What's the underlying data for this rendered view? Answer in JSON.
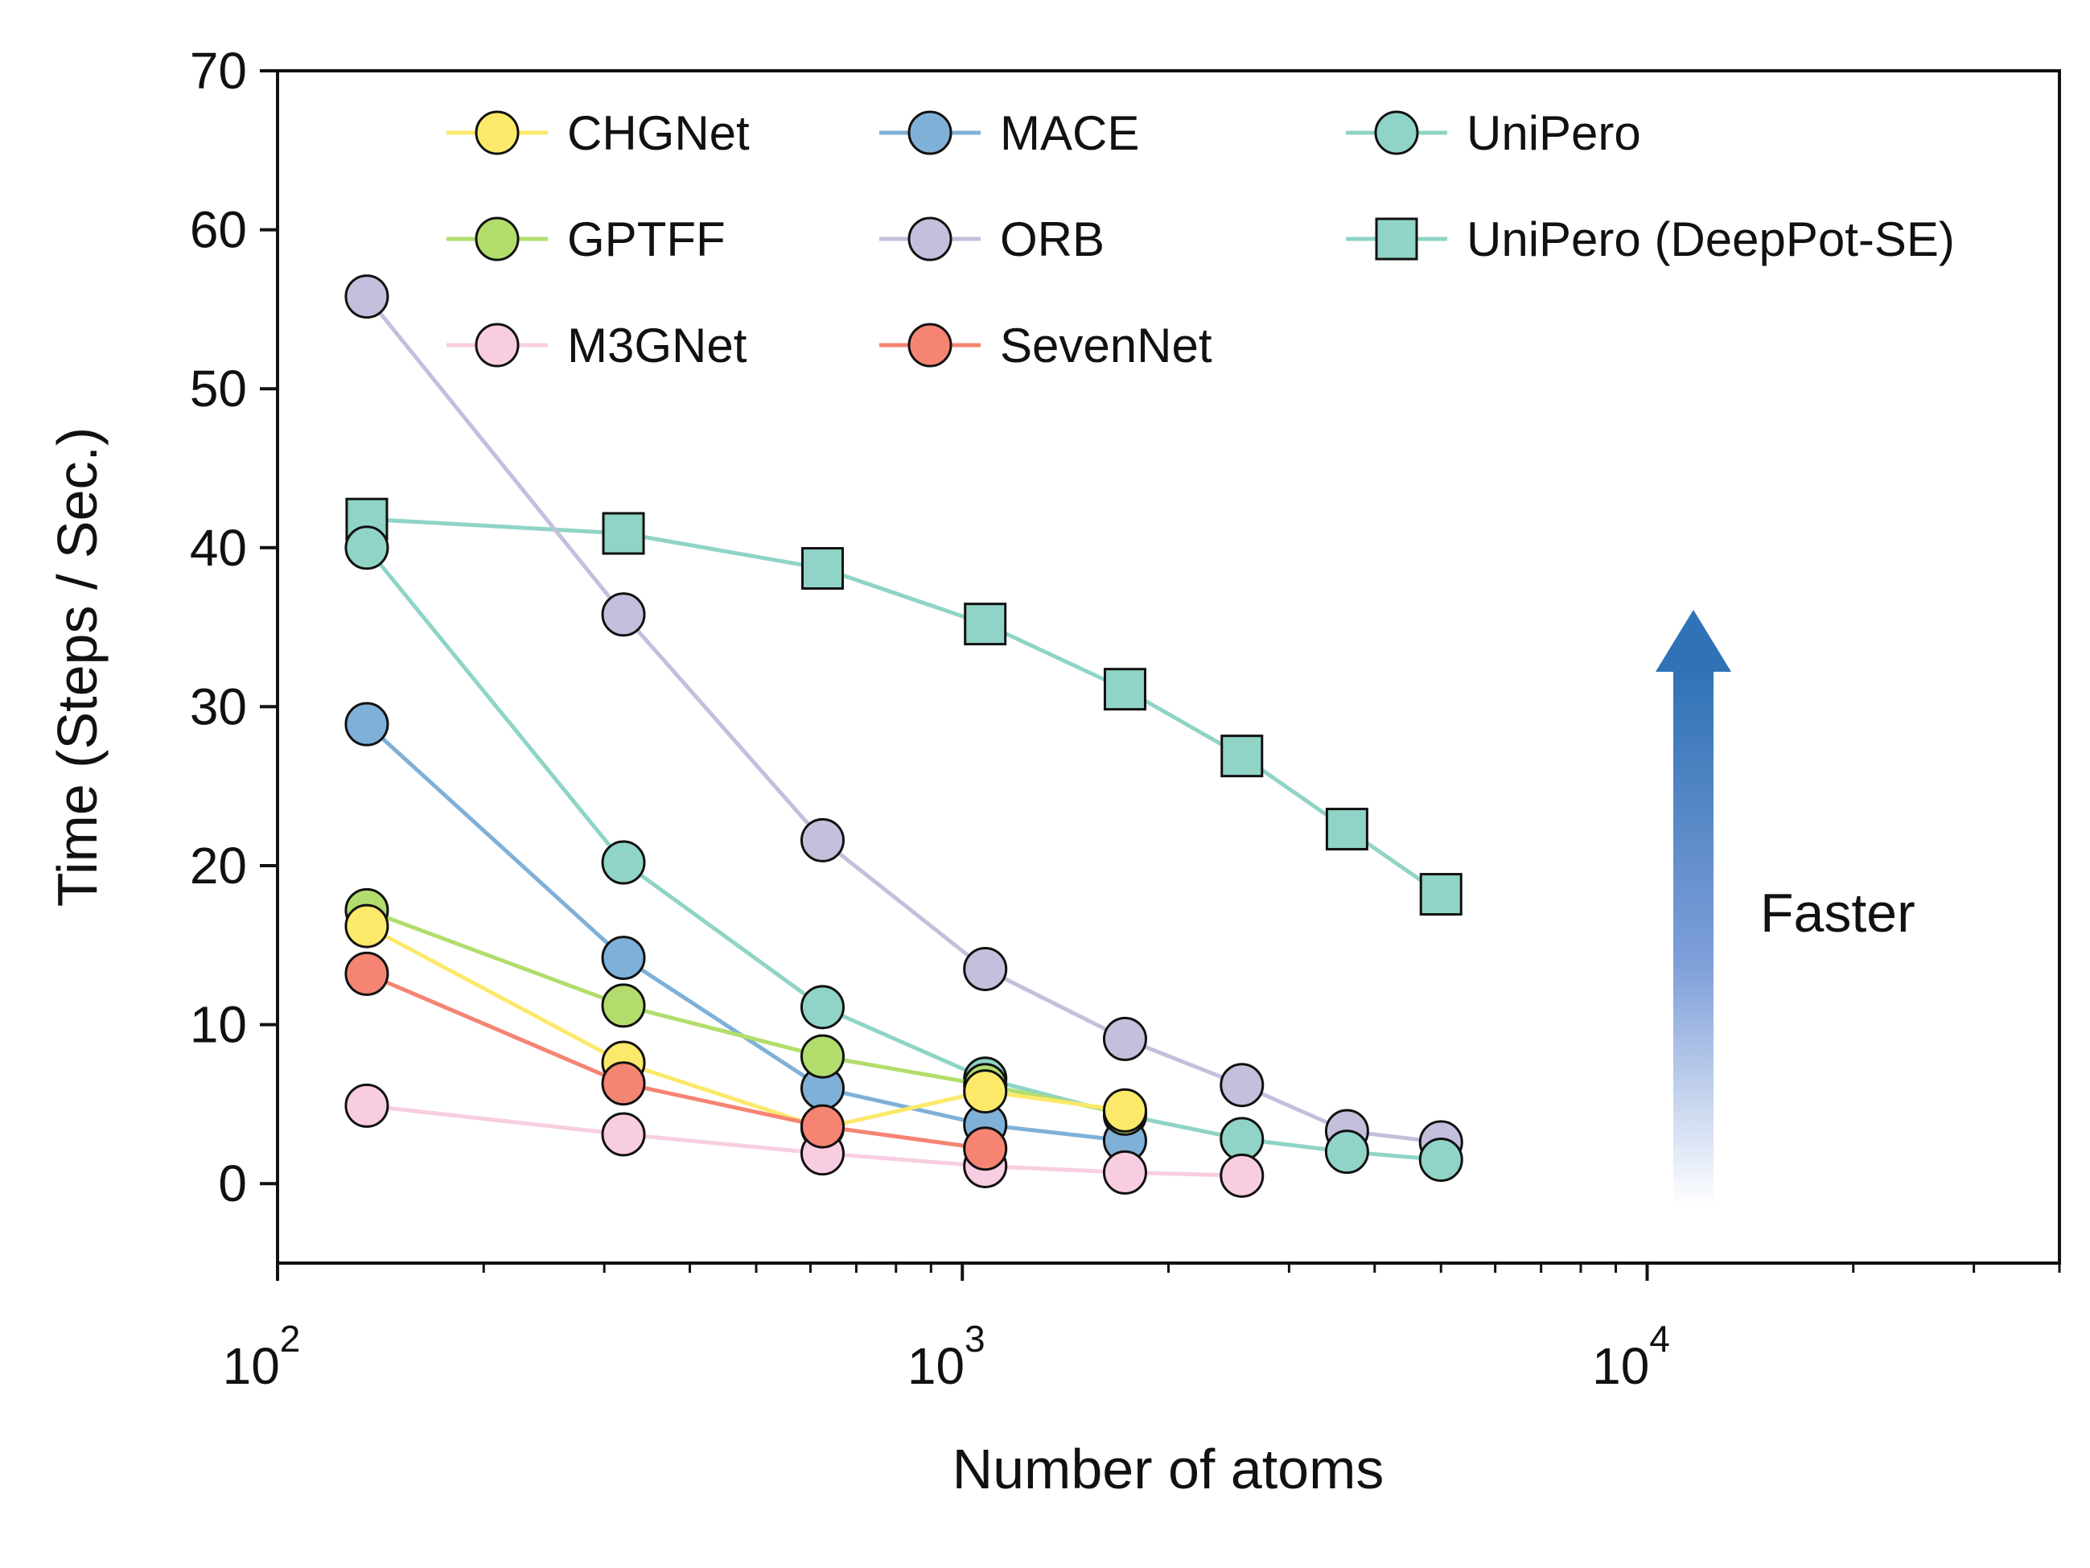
{
  "chart_data": {
    "type": "line",
    "title": "",
    "xlabel": "Number of atoms",
    "ylabel": "Time (Steps / Sec.)",
    "xscale": "log",
    "xlim": [
      100,
      40000
    ],
    "ylim": [
      -5,
      70
    ],
    "x_ticks": [
      {
        "value": 100,
        "base": "10",
        "exp": "2"
      },
      {
        "value": 1000,
        "base": "10",
        "exp": "3"
      },
      {
        "value": 10000,
        "base": "10",
        "exp": "4"
      }
    ],
    "y_ticks": [
      0,
      10,
      20,
      30,
      40,
      50,
      60,
      70
    ],
    "legend_position": "top",
    "annotation": {
      "text": "Faster",
      "arrow": "up",
      "color": "#2f72b5"
    },
    "series": [
      {
        "name": "CHGNet",
        "color": "#fce96a",
        "marker": "circle",
        "x": [
          135,
          320,
          625,
          1080,
          1728
        ],
        "y": [
          16.2,
          7.6,
          3.5,
          5.8,
          4.6
        ]
      },
      {
        "name": "MACE",
        "color": "#7fb0d8",
        "marker": "circle",
        "x": [
          135,
          320,
          625,
          1080,
          1728
        ],
        "y": [
          28.9,
          14.2,
          6.0,
          3.7,
          2.7
        ]
      },
      {
        "name": "UniPero",
        "color": "#8fd4c6",
        "marker": "circle",
        "x": [
          135,
          320,
          625,
          1080,
          1728,
          2560,
          3645,
          5000
        ],
        "y": [
          40.0,
          20.2,
          11.1,
          6.6,
          4.3,
          2.8,
          2.0,
          1.5
        ]
      },
      {
        "name": "GPTFF",
        "color": "#b2dd6d",
        "marker": "circle",
        "x": [
          135,
          320,
          625,
          1080,
          1728
        ],
        "y": [
          17.2,
          11.2,
          8.0,
          6.2,
          4.4
        ]
      },
      {
        "name": "ORB",
        "color": "#c3bfdc",
        "marker": "circle",
        "x": [
          135,
          320,
          625,
          1080,
          1728,
          2560,
          3645,
          5000
        ],
        "y": [
          55.8,
          35.8,
          21.6,
          13.5,
          9.1,
          6.2,
          3.3,
          2.6
        ]
      },
      {
        "name": "UniPero (DeepPot-SE)",
        "color": "#8fd4c6",
        "marker": "square",
        "x": [
          135,
          320,
          625,
          1080,
          1728,
          2560,
          3645,
          5000
        ],
        "y": [
          41.8,
          40.9,
          38.7,
          35.2,
          31.1,
          26.9,
          22.3,
          18.2
        ]
      },
      {
        "name": "M3GNet",
        "color": "#f9cde1",
        "marker": "circle",
        "x": [
          135,
          320,
          625,
          1080,
          1728,
          2560
        ],
        "y": [
          4.9,
          3.1,
          1.9,
          1.1,
          0.7,
          0.5
        ]
      },
      {
        "name": "SevenNet",
        "color": "#f58472",
        "marker": "circle",
        "x": [
          135,
          320,
          625,
          1080
        ],
        "y": [
          13.2,
          6.3,
          3.6,
          2.2
        ]
      }
    ]
  }
}
